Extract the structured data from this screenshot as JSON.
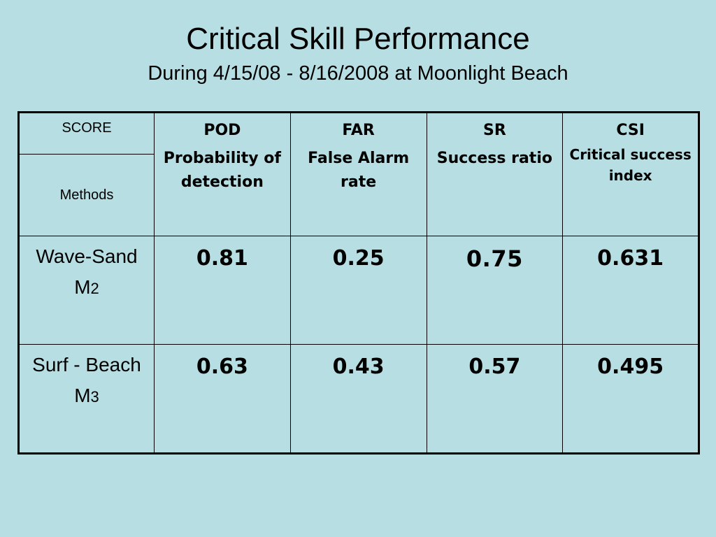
{
  "slide": {
    "title": "Critical Skill Performance",
    "subtitle": "During 4/15/08 - 8/16/2008 at Moonlight Beach",
    "background_color": "#b7dfe3"
  },
  "table": {
    "score_label": "SCORE",
    "methods_label": "Methods",
    "columns": [
      {
        "abbr": "POD",
        "full": "Probability of detection"
      },
      {
        "abbr": "FAR",
        "full": "False Alarm rate"
      },
      {
        "abbr": "SR",
        "full": "Success ratio"
      },
      {
        "abbr": "CSI",
        "full": "Critical success index"
      }
    ],
    "rows": [
      {
        "method": "Wave-Sand",
        "id_letter": "M",
        "id_sub": "2",
        "values": [
          "0.81",
          "0.25",
          "0.75",
          "0.631"
        ]
      },
      {
        "method": "Surf - Beach",
        "id_letter": "M",
        "id_sub": "3",
        "values": [
          "0.63",
          "0.43",
          "0.57",
          "0.495"
        ]
      }
    ]
  }
}
